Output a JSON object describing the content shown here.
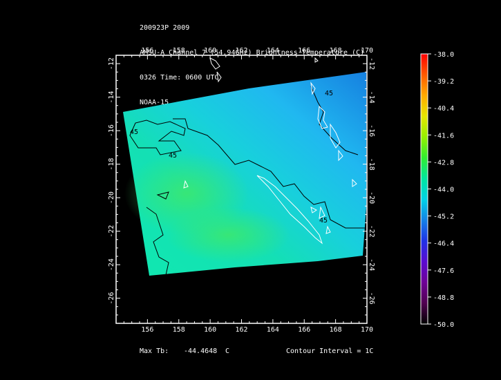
{
  "header": {
    "line1": "200923P 2009",
    "line2": "AMSU-A Channel 7 (54.94GHz) Brightness Temperature (C)",
    "line3": "0326 Time: 0600 UTC",
    "line4": "NOAA-15"
  },
  "footer": {
    "max_label": "Max Tb:",
    "max_value": "-44.4648",
    "max_unit": "C",
    "contour_interval": "Contour Interval = 1C"
  },
  "map": {
    "lon_ticks": [
      "156",
      "158",
      "160",
      "162",
      "164",
      "166",
      "168",
      "170"
    ],
    "lat_ticks": [
      "-12",
      "-14",
      "-16",
      "-18",
      "-20",
      "-22",
      "-24",
      "-26"
    ],
    "lon_range": [
      154,
      170
    ],
    "lat_range": [
      -11.5,
      -27.5
    ],
    "contour_labels": [
      "45",
      "45",
      "45",
      "45"
    ]
  },
  "colorbar": {
    "labels": [
      "-38.0",
      "-39.2",
      "-40.4",
      "-41.6",
      "-42.8",
      "-44.0",
      "-45.2",
      "-46.4",
      "-47.6",
      "-48.8",
      "-50.0"
    ],
    "colors": [
      "#ff0000",
      "#ff5a00",
      "#ffaa00",
      "#e6e600",
      "#96f000",
      "#30ee30",
      "#00e6a0",
      "#00d2e6",
      "#1482e6",
      "#1e32e6",
      "#5a0ad2",
      "#6e0096",
      "#500050",
      "#000000"
    ]
  },
  "colors": {
    "frame": "#ffffff",
    "coast": "#ffffff",
    "contour": "#000000"
  }
}
